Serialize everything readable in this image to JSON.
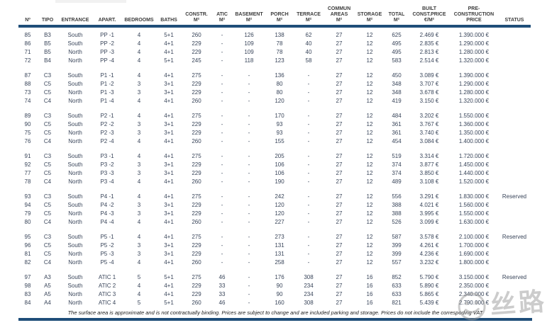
{
  "table": {
    "columns": [
      {
        "id": "no",
        "lines": [
          "Nº"
        ]
      },
      {
        "id": "tipo",
        "lines": [
          "TIPO"
        ]
      },
      {
        "id": "entrance",
        "lines": [
          "ENTRANCE"
        ]
      },
      {
        "id": "apart",
        "lines": [
          "APART."
        ]
      },
      {
        "id": "bedrooms",
        "lines": [
          "BEDROOMS"
        ]
      },
      {
        "id": "baths",
        "lines": [
          "BATHS"
        ]
      },
      {
        "id": "constr",
        "lines": [
          "CONSTR.",
          "M²"
        ]
      },
      {
        "id": "atic",
        "lines": [
          "ATIC",
          "M²"
        ]
      },
      {
        "id": "basement",
        "lines": [
          "BASEMENT",
          "M²"
        ]
      },
      {
        "id": "porch",
        "lines": [
          "PORCH",
          "M²"
        ]
      },
      {
        "id": "terrace",
        "lines": [
          "TERRACE",
          "M²"
        ]
      },
      {
        "id": "commun_areas",
        "lines": [
          "COMMUN",
          "AREAS",
          "M²"
        ]
      },
      {
        "id": "storage",
        "lines": [
          "STORAGE",
          "M²"
        ]
      },
      {
        "id": "total",
        "lines": [
          "TOTAL",
          "M²"
        ]
      },
      {
        "id": "built_const_price",
        "lines": [
          "BUILT",
          "CONST.PRICE",
          "€/M²"
        ]
      },
      {
        "id": "pre_construction_price",
        "lines": [
          "PRE-",
          "CONSTRUCTION",
          "PRICE"
        ]
      },
      {
        "id": "status",
        "lines": [
          "STATUS"
        ]
      }
    ],
    "groups": [
      {
        "rows": [
          [
            "85",
            "B3",
            "South",
            "PP -1",
            "4",
            "5+1",
            "260",
            "-",
            "126",
            "138",
            "62",
            "27",
            "12",
            "625",
            "2.469 €",
            "1.390.000 €",
            ""
          ],
          [
            "86",
            "B5",
            "South",
            "PP -2",
            "4",
            "4+1",
            "229",
            "-",
            "109",
            "78",
            "40",
            "27",
            "12",
            "495",
            "2.835 €",
            "1.290.000 €",
            ""
          ],
          [
            "71",
            "B5",
            "North",
            "PP -3",
            "4",
            "4+1",
            "229",
            "-",
            "109",
            "78",
            "40",
            "27",
            "12",
            "495",
            "2.813 €",
            "1.280.000 €",
            ""
          ],
          [
            "72",
            "B4",
            "North",
            "PP -4",
            "4",
            "5+1",
            "245",
            "-",
            "118",
            "123",
            "58",
            "27",
            "12",
            "583",
            "2.514 €",
            "1.320.000 €",
            ""
          ]
        ]
      },
      {
        "rows": [
          [
            "87",
            "C3",
            "South",
            "P1 -1",
            "4",
            "4+1",
            "275",
            "-",
            "-",
            "136",
            "-",
            "27",
            "12",
            "450",
            "3.089 €",
            "1.390.000 €",
            ""
          ],
          [
            "88",
            "C5",
            "South",
            "P1 -2",
            "3",
            "3+1",
            "229",
            "-",
            "-",
            "80",
            "-",
            "27",
            "12",
            "348",
            "3.707 €",
            "1.290.000 €",
            ""
          ],
          [
            "73",
            "C5",
            "North",
            "P1 -3",
            "3",
            "3+1",
            "229",
            "-",
            "-",
            "80",
            "-",
            "27",
            "12",
            "348",
            "3.678 €",
            "1.280.000 €",
            ""
          ],
          [
            "74",
            "C4",
            "North",
            "P1 -4",
            "4",
            "4+1",
            "260",
            "-",
            "-",
            "120",
            "-",
            "27",
            "12",
            "419",
            "3.150 €",
            "1.320.000 €",
            ""
          ]
        ]
      },
      {
        "rows": [
          [
            "89",
            "C3",
            "South",
            "P2 -1",
            "4",
            "4+1",
            "275",
            "-",
            "-",
            "170",
            "-",
            "27",
            "12",
            "484",
            "3.202 €",
            "1.550.000 €",
            ""
          ],
          [
            "90",
            "C5",
            "South",
            "P2 -2",
            "3",
            "3+1",
            "229",
            "-",
            "-",
            "93",
            "-",
            "27",
            "12",
            "361",
            "3.767 €",
            "1.360.000 €",
            ""
          ],
          [
            "75",
            "C5",
            "North",
            "P2 -3",
            "3",
            "3+1",
            "229",
            "-",
            "-",
            "93",
            "-",
            "27",
            "12",
            "361",
            "3.740 €",
            "1.350.000 €",
            ""
          ],
          [
            "76",
            "C4",
            "North",
            "P2 -4",
            "4",
            "4+1",
            "260",
            "-",
            "-",
            "155",
            "-",
            "27",
            "12",
            "454",
            "3.084 €",
            "1.400.000 €",
            ""
          ]
        ]
      },
      {
        "rows": [
          [
            "91",
            "C3",
            "South",
            "P3 -1",
            "4",
            "4+1",
            "275",
            "-",
            "-",
            "205",
            "-",
            "27",
            "12",
            "519",
            "3.314 €",
            "1.720.000 €",
            ""
          ],
          [
            "92",
            "C5",
            "South",
            "P3 -2",
            "3",
            "3+1",
            "229",
            "-",
            "-",
            "106",
            "-",
            "27",
            "12",
            "374",
            "3.877 €",
            "1.450.000 €",
            ""
          ],
          [
            "77",
            "C5",
            "North",
            "P3 -3",
            "3",
            "3+1",
            "229",
            "-",
            "-",
            "106",
            "-",
            "27",
            "12",
            "374",
            "3.850 €",
            "1.440.000 €",
            ""
          ],
          [
            "78",
            "C4",
            "North",
            "P3 -4",
            "4",
            "4+1",
            "260",
            "-",
            "-",
            "190",
            "-",
            "27",
            "12",
            "489",
            "3.108 €",
            "1.520.000 €",
            ""
          ]
        ]
      },
      {
        "rows": [
          [
            "93",
            "C3",
            "South",
            "P4 -1",
            "4",
            "4+1",
            "275",
            "-",
            "-",
            "242",
            "-",
            "27",
            "12",
            "556",
            "3.291 €",
            "1.830.000 €",
            "Reserved"
          ],
          [
            "94",
            "C5",
            "South",
            "P4 -2",
            "3",
            "3+1",
            "229",
            "-",
            "-",
            "120",
            "-",
            "27",
            "12",
            "388",
            "4.021 €",
            "1.560.000 €",
            ""
          ],
          [
            "79",
            "C5",
            "North",
            "P4 -3",
            "3",
            "3+1",
            "229",
            "-",
            "-",
            "120",
            "-",
            "27",
            "12",
            "388",
            "3.995 €",
            "1.550.000 €",
            ""
          ],
          [
            "80",
            "C4",
            "North",
            "P4 -4",
            "4",
            "4+1",
            "260",
            "-",
            "-",
            "227",
            "-",
            "27",
            "12",
            "526",
            "3.099 €",
            "1.630.000 €",
            ""
          ]
        ]
      },
      {
        "rows": [
          [
            "95",
            "C3",
            "South",
            "P5 -1",
            "4",
            "4+1",
            "275",
            "-",
            "-",
            "273",
            "-",
            "27",
            "12",
            "587",
            "3.578 €",
            "2.100.000 €",
            "Reserved"
          ],
          [
            "96",
            "C5",
            "South",
            "P5 -2",
            "3",
            "3+1",
            "229",
            "-",
            "-",
            "131",
            "-",
            "27",
            "12",
            "399",
            "4.261 €",
            "1.700.000 €",
            ""
          ],
          [
            "81",
            "C5",
            "North",
            "P5 -3",
            "3",
            "3+1",
            "229",
            "-",
            "-",
            "131",
            "-",
            "27",
            "12",
            "399",
            "4.236 €",
            "1.690.000 €",
            ""
          ],
          [
            "82",
            "C4",
            "North",
            "P5 -4",
            "4",
            "4+1",
            "260",
            "-",
            "-",
            "258",
            "-",
            "27",
            "12",
            "557",
            "3.232 €",
            "1.800.000 €",
            ""
          ]
        ]
      },
      {
        "rows": [
          [
            "97",
            "A3",
            "South",
            "ATIC 1",
            "5",
            "5+1",
            "275",
            "46",
            "-",
            "176",
            "308",
            "27",
            "16",
            "852",
            "5.790 €",
            "3.150.000 €",
            "Reserved"
          ],
          [
            "98",
            "A5",
            "South",
            "ATIC 2",
            "4",
            "4+1",
            "229",
            "33",
            "-",
            "90",
            "234",
            "27",
            "16",
            "633",
            "5.890 €",
            "2.350.000 €",
            ""
          ],
          [
            "83",
            "A5",
            "North",
            "ATIC 3",
            "4",
            "4+1",
            "229",
            "33",
            "-",
            "90",
            "234",
            "27",
            "16",
            "633",
            "5.865 €",
            "2.340.000 €",
            ""
          ],
          [
            "84",
            "A4",
            "North",
            "ATIC 4",
            "5",
            "5+1",
            "260",
            "46",
            "-",
            "160",
            "308",
            "27",
            "16",
            "821",
            "5.439 €",
            "2.790.000 €",
            ""
          ]
        ]
      }
    ],
    "footnote": "The surface area is approximate and is not contractually binding. Prices are subject to change and are included parking and storage. Prices do not include the correspoding VAT"
  },
  "watermark": {
    "text": "丝路"
  }
}
